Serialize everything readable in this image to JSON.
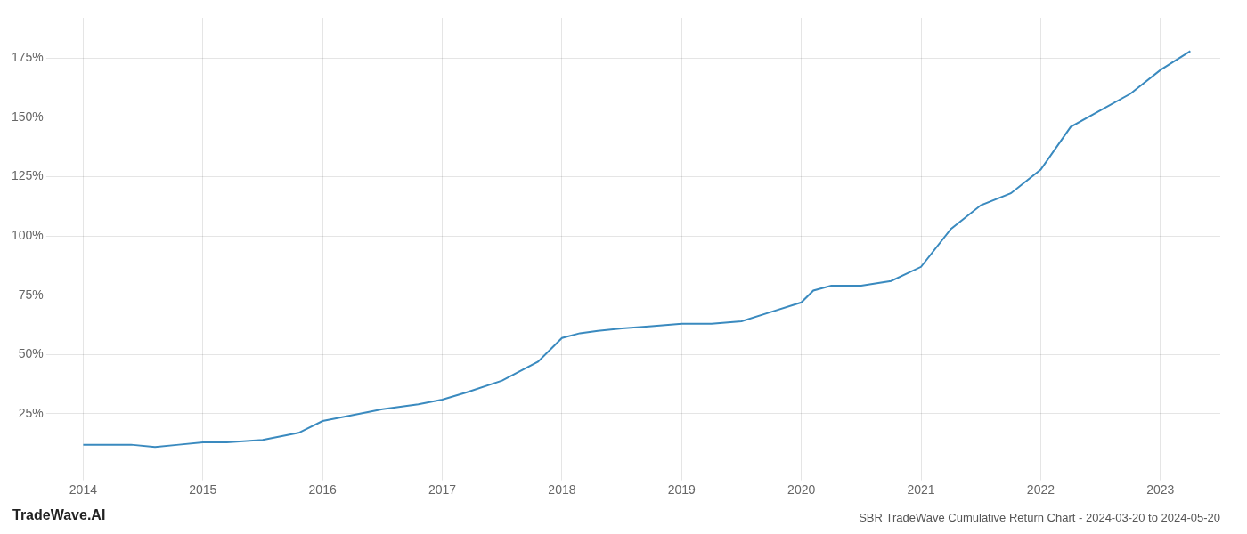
{
  "chart_data": {
    "type": "line",
    "title": "SBR TradeWave Cumulative Return Chart - 2024-03-20 to 2024-05-20",
    "annotations": [
      "TradeWave.AI"
    ],
    "color": "#3a8abf",
    "x": [
      2014.0,
      2014.2,
      2014.4,
      2014.6,
      2014.8,
      2015.0,
      2015.2,
      2015.5,
      2015.8,
      2016.0,
      2016.2,
      2016.5,
      2016.8,
      2017.0,
      2017.2,
      2017.5,
      2017.8,
      2018.0,
      2018.15,
      2018.3,
      2018.5,
      2018.75,
      2019.0,
      2019.25,
      2019.5,
      2019.75,
      2020.0,
      2020.1,
      2020.25,
      2020.5,
      2020.75,
      2021.0,
      2021.25,
      2021.5,
      2021.75,
      2022.0,
      2022.25,
      2022.5,
      2022.75,
      2023.0,
      2023.25
    ],
    "values": [
      12,
      12,
      12,
      11,
      12,
      13,
      13,
      14,
      17,
      22,
      24,
      27,
      29,
      31,
      34,
      39,
      47,
      57,
      59,
      60,
      61,
      62,
      63,
      63,
      64,
      68,
      72,
      77,
      79,
      79,
      81,
      87,
      103,
      113,
      118,
      128,
      146,
      153,
      160,
      170,
      178
    ],
    "xlim": [
      2013.75,
      2023.5
    ],
    "xticks": [
      2014,
      2015,
      2016,
      2017,
      2018,
      2019,
      2020,
      2021,
      2022,
      2023
    ],
    "ylim": [
      0,
      192
    ],
    "yticks": [
      {
        "value": 25,
        "label": "25%"
      },
      {
        "value": 50,
        "label": "50%"
      },
      {
        "value": 75,
        "label": "75%"
      },
      {
        "value": 100,
        "label": "100%"
      },
      {
        "value": 125,
        "label": "125%"
      },
      {
        "value": 150,
        "label": "150%"
      },
      {
        "value": 175,
        "label": "175%"
      }
    ],
    "grid": true
  }
}
